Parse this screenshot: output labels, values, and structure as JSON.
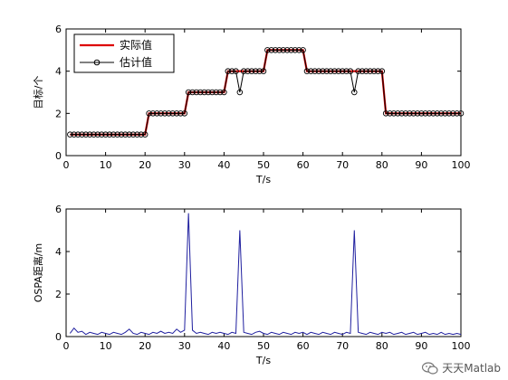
{
  "chart_data": [
    {
      "type": "line",
      "xlim": [
        0,
        100
      ],
      "ylim": [
        0,
        6
      ],
      "xticks": [
        0,
        10,
        20,
        30,
        40,
        50,
        60,
        70,
        80,
        90,
        100
      ],
      "yticks": [
        0,
        2,
        4,
        6
      ],
      "xlabel": "T/s",
      "ylabel": "目标/个",
      "legend_position": "top-left",
      "series": [
        {
          "name": "实际值",
          "color": "#dd0000",
          "x": [
            1,
            20,
            21,
            30,
            31,
            40,
            41,
            50,
            51,
            60,
            61,
            80,
            81,
            100
          ],
          "y": [
            1,
            1,
            2,
            2,
            3,
            3,
            4,
            4,
            5,
            5,
            4,
            4,
            2,
            2
          ]
        },
        {
          "name": "估计值",
          "color": "#000000",
          "marker": "circle",
          "x": [
            1,
            2,
            3,
            4,
            5,
            6,
            7,
            8,
            9,
            10,
            11,
            12,
            13,
            14,
            15,
            16,
            17,
            18,
            19,
            20,
            21,
            22,
            23,
            24,
            25,
            26,
            27,
            28,
            29,
            30,
            31,
            32,
            33,
            34,
            35,
            36,
            37,
            38,
            39,
            40,
            41,
            42,
            43,
            44,
            45,
            46,
            47,
            48,
            49,
            50,
            51,
            52,
            53,
            54,
            55,
            56,
            57,
            58,
            59,
            60,
            61,
            62,
            63,
            64,
            65,
            66,
            67,
            68,
            69,
            70,
            71,
            72,
            73,
            74,
            75,
            76,
            77,
            78,
            79,
            80,
            81,
            82,
            83,
            84,
            85,
            86,
            87,
            88,
            89,
            90,
            91,
            92,
            93,
            94,
            95,
            96,
            97,
            98,
            99,
            100
          ],
          "y": [
            1,
            1,
            1,
            1,
            1,
            1,
            1,
            1,
            1,
            1,
            1,
            1,
            1,
            1,
            1,
            1,
            1,
            1,
            1,
            1,
            2,
            2,
            2,
            2,
            2,
            2,
            2,
            2,
            2,
            2,
            3,
            3,
            3,
            3,
            3,
            3,
            3,
            3,
            3,
            3,
            4,
            4,
            4,
            3,
            4,
            4,
            4,
            4,
            4,
            4,
            5,
            5,
            5,
            5,
            5,
            5,
            5,
            5,
            5,
            5,
            4,
            4,
            4,
            4,
            4,
            4,
            4,
            4,
            4,
            4,
            4,
            4,
            3,
            4,
            4,
            4,
            4,
            4,
            4,
            4,
            2,
            2,
            2,
            2,
            2,
            2,
            2,
            2,
            2,
            2,
            2,
            2,
            2,
            2,
            2,
            2,
            2,
            2,
            2,
            2
          ]
        }
      ]
    },
    {
      "type": "line",
      "xlim": [
        0,
        100
      ],
      "ylim": [
        0,
        6
      ],
      "xticks": [
        0,
        10,
        20,
        30,
        40,
        50,
        60,
        70,
        80,
        90,
        100
      ],
      "yticks": [
        0,
        2,
        4,
        6
      ],
      "xlabel": "T/s",
      "ylabel": "OSPA距离/m",
      "series": [
        {
          "color": "#1f1f9f",
          "x": [
            1,
            2,
            3,
            4,
            5,
            6,
            7,
            8,
            9,
            10,
            11,
            12,
            13,
            14,
            15,
            16,
            17,
            18,
            19,
            20,
            21,
            22,
            23,
            24,
            25,
            26,
            27,
            28,
            29,
            30,
            31,
            32,
            33,
            34,
            35,
            36,
            37,
            38,
            39,
            40,
            41,
            42,
            43,
            44,
            45,
            46,
            47,
            48,
            49,
            50,
            51,
            52,
            53,
            54,
            55,
            56,
            57,
            58,
            59,
            60,
            61,
            62,
            63,
            64,
            65,
            66,
            67,
            68,
            69,
            70,
            71,
            72,
            73,
            74,
            75,
            76,
            77,
            78,
            79,
            80,
            81,
            82,
            83,
            84,
            85,
            86,
            87,
            88,
            89,
            90,
            91,
            92,
            93,
            94,
            95,
            96,
            97,
            98,
            99,
            100
          ],
          "y": [
            0.15,
            0.4,
            0.2,
            0.25,
            0.1,
            0.2,
            0.15,
            0.1,
            0.2,
            0.15,
            0.1,
            0.2,
            0.15,
            0.1,
            0.2,
            0.35,
            0.15,
            0.1,
            0.2,
            0.15,
            0.1,
            0.2,
            0.15,
            0.25,
            0.15,
            0.2,
            0.15,
            0.35,
            0.2,
            0.3,
            5.8,
            0.3,
            0.15,
            0.2,
            0.15,
            0.1,
            0.2,
            0.15,
            0.2,
            0.15,
            0.1,
            0.2,
            0.15,
            5.0,
            0.2,
            0.15,
            0.1,
            0.2,
            0.25,
            0.15,
            0.1,
            0.2,
            0.15,
            0.1,
            0.2,
            0.15,
            0.1,
            0.2,
            0.15,
            0.2,
            0.1,
            0.2,
            0.15,
            0.1,
            0.2,
            0.15,
            0.1,
            0.2,
            0.15,
            0.1,
            0.2,
            0.15,
            5.0,
            0.2,
            0.15,
            0.1,
            0.2,
            0.15,
            0.1,
            0.2,
            0.15,
            0.2,
            0.1,
            0.15,
            0.2,
            0.1,
            0.15,
            0.2,
            0.1,
            0.15,
            0.2,
            0.1,
            0.15,
            0.1,
            0.2,
            0.1,
            0.15,
            0.1,
            0.15,
            0.1
          ]
        }
      ]
    }
  ],
  "watermark": {
    "text": "天天Matlab",
    "icon": "wechat-icon"
  }
}
